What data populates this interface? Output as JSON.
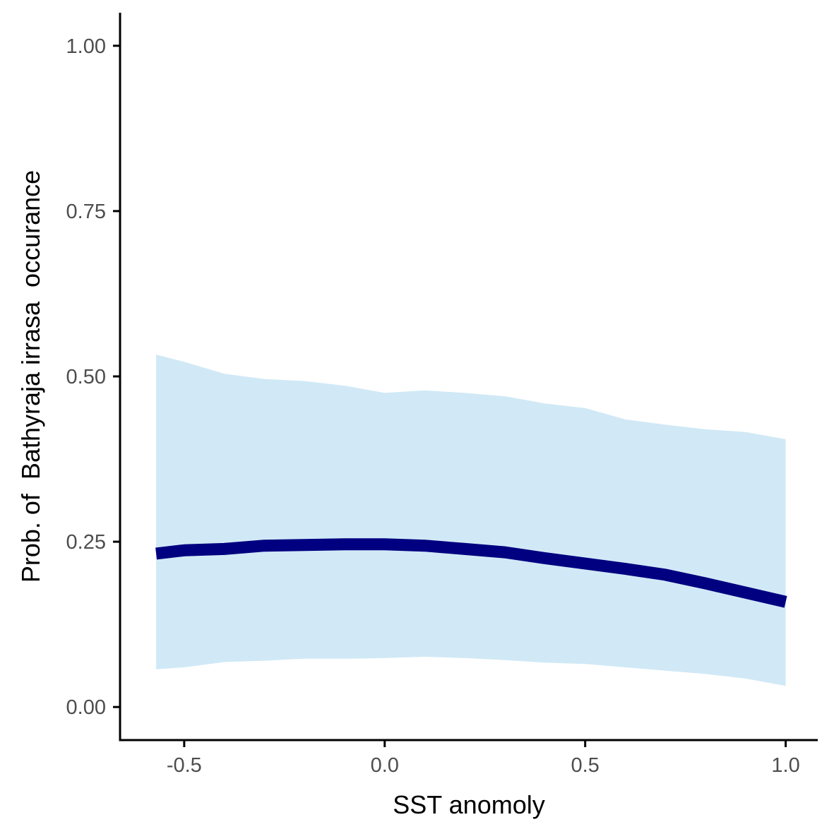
{
  "chart_data": {
    "type": "line",
    "title": "",
    "xlabel": "SST anomoly",
    "ylabel": "Prob. of  Bathyraja irrasa  occurance",
    "xlim": [
      -0.66,
      1.08
    ],
    "ylim": [
      -0.05,
      1.05
    ],
    "x_ticks": [
      -0.5,
      0.0,
      0.5,
      1.0
    ],
    "x_tick_labels": [
      "-0.5",
      "0.0",
      "0.5",
      "1.0"
    ],
    "y_ticks": [
      0.0,
      0.25,
      0.5,
      0.75,
      1.0
    ],
    "y_tick_labels": [
      "0.00",
      "0.25",
      "0.50",
      "0.75",
      "1.00"
    ],
    "grid": false,
    "legend": "none",
    "colors": {
      "line": "#000080",
      "ribbon": "#d1e9f6",
      "axis": "#000000",
      "tick_label": "#4d4d4d"
    },
    "series": [
      {
        "x": [
          -0.57,
          -0.5,
          -0.4,
          -0.3,
          -0.2,
          -0.1,
          0.0,
          0.1,
          0.2,
          0.3,
          0.4,
          0.5,
          0.6,
          0.7,
          0.8,
          0.9,
          1.0
        ],
        "y": [
          0.232,
          0.237,
          0.239,
          0.244,
          0.245,
          0.246,
          0.246,
          0.244,
          0.239,
          0.234,
          0.225,
          0.217,
          0.209,
          0.2,
          0.187,
          0.173,
          0.159
        ],
        "lower": [
          0.057,
          0.06,
          0.068,
          0.07,
          0.073,
          0.073,
          0.074,
          0.076,
          0.074,
          0.071,
          0.067,
          0.065,
          0.06,
          0.055,
          0.05,
          0.043,
          0.032
        ],
        "upper": [
          0.533,
          0.522,
          0.504,
          0.496,
          0.493,
          0.486,
          0.475,
          0.479,
          0.475,
          0.47,
          0.459,
          0.452,
          0.435,
          0.427,
          0.42,
          0.416,
          0.405
        ]
      }
    ]
  }
}
